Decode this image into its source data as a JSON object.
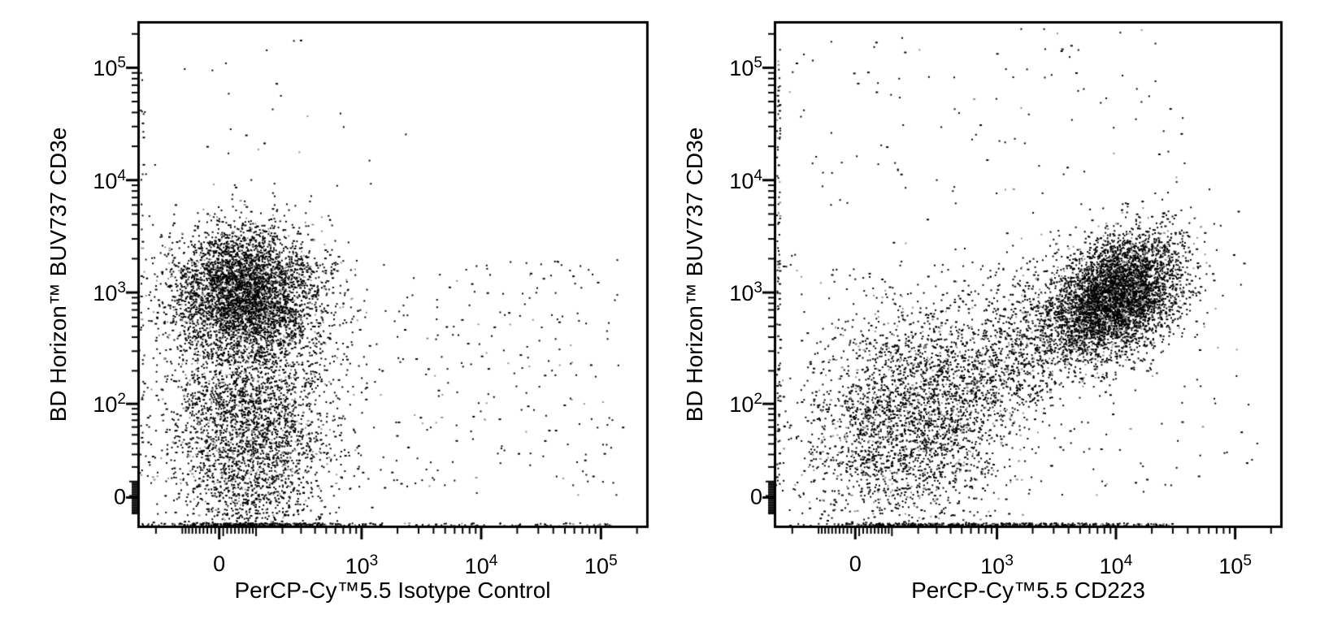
{
  "figure": {
    "background_color": "#ffffff",
    "axis_color": "#000000",
    "dot_color": "#000000",
    "dot_color_secondary": "#8f8f8f"
  },
  "chart_data": [
    {
      "type": "scatter",
      "variant": "flow-cytometry-dot-plot",
      "title": "",
      "x_axis": {
        "label": "PerCP-Cy™5.5 Isotype Control",
        "scale": "arcsinh",
        "cofactor": 130,
        "min": -300,
        "max": 250000,
        "ticks": [
          {
            "base": "0",
            "exp": "",
            "value": 0
          },
          {
            "base": "10",
            "exp": "3",
            "value": 1000
          },
          {
            "base": "10",
            "exp": "4",
            "value": 10000
          },
          {
            "base": "10",
            "exp": "5",
            "value": 100000
          }
        ]
      },
      "y_axis": {
        "label": "BD Horizon™ BUV737 CD3e",
        "scale": "arcsinh",
        "cofactor": 30,
        "min": -20,
        "max": 260000,
        "ticks": [
          {
            "base": "0",
            "exp": "",
            "value": 0
          },
          {
            "base": "10",
            "exp": "2",
            "value": 100
          },
          {
            "base": "10",
            "exp": "3",
            "value": 1000
          },
          {
            "base": "10",
            "exp": "4",
            "value": 10000
          },
          {
            "base": "10",
            "exp": "5",
            "value": 100000
          }
        ]
      },
      "populations": [
        {
          "name": "cd3e-positive-main",
          "n": 4300,
          "x": {
            "type": "gauss",
            "center": 65,
            "sigma_u": 0.72
          },
          "y": {
            "type": "gauss",
            "center": 1000,
            "sigma_u": 0.66
          },
          "rho": 0
        },
        {
          "name": "cd3e-low-tail",
          "n": 3100,
          "x": {
            "type": "gauss",
            "center": 75,
            "sigma_u": 0.8
          },
          "y": {
            "type": "gauss",
            "center": 55,
            "sigma_u": 1.2
          },
          "rho": 0
        },
        {
          "name": "sparse-right",
          "n": 300,
          "x": {
            "type": "uniform",
            "lo": 250,
            "hi": 150000
          },
          "y": {
            "type": "uniform",
            "lo": 2,
            "hi": 2000
          },
          "rho": 0
        },
        {
          "name": "sparse-top",
          "n": 35,
          "x": {
            "type": "gauss",
            "center": 150,
            "sigma_u": 1.3
          },
          "y": {
            "type": "uniform",
            "lo": 5000,
            "hi": 230000
          },
          "rho": 0
        },
        {
          "name": "axis-pile-bottom",
          "n": 340,
          "pile": "bottom",
          "x": {
            "type": "gauss",
            "center": 90,
            "sigma_u": 0.9
          }
        },
        {
          "name": "axis-pile-bottom-far",
          "n": 70,
          "pile": "bottom",
          "x": {
            "type": "uniform",
            "lo": 700,
            "hi": 120000
          }
        },
        {
          "name": "axis-pile-left",
          "n": 30,
          "pile": "left",
          "y": {
            "type": "uniform",
            "lo": 5,
            "hi": 100000
          }
        }
      ]
    },
    {
      "type": "scatter",
      "variant": "flow-cytometry-dot-plot",
      "title": "",
      "x_axis": {
        "label": "PerCP-Cy™5.5 CD223",
        "scale": "arcsinh",
        "cofactor": 130,
        "min": -300,
        "max": 250000,
        "ticks": [
          {
            "base": "0",
            "exp": "",
            "value": 0
          },
          {
            "base": "10",
            "exp": "3",
            "value": 1000
          },
          {
            "base": "10",
            "exp": "4",
            "value": 10000
          },
          {
            "base": "10",
            "exp": "5",
            "value": 100000
          }
        ]
      },
      "y_axis": {
        "label": "BD Horizon™ BUV737 CD3e",
        "scale": "arcsinh",
        "cofactor": 30,
        "min": -20,
        "max": 260000,
        "ticks": [
          {
            "base": "0",
            "exp": "",
            "value": 0
          },
          {
            "base": "10",
            "exp": "2",
            "value": 100
          },
          {
            "base": "10",
            "exp": "3",
            "value": 1000
          },
          {
            "base": "10",
            "exp": "4",
            "value": 10000
          },
          {
            "base": "10",
            "exp": "5",
            "value": 100000
          }
        ]
      },
      "populations": [
        {
          "name": "cd223-cd3e-double-positive",
          "n": 4700,
          "x": {
            "type": "gauss",
            "center": 10000,
            "sigma_u": 0.6
          },
          "y": {
            "type": "gauss",
            "center": 950,
            "sigma_u": 0.62
          },
          "rho": 0.35
        },
        {
          "name": "cd223-low-cloud",
          "n": 2900,
          "x": {
            "type": "gauss",
            "center": 170,
            "sigma_u": 1.05
          },
          "y": {
            "type": "gauss",
            "center": 75,
            "sigma_u": 1.2
          },
          "rho": 0.2
        },
        {
          "name": "diagonal-bridge",
          "n": 1000,
          "x": {
            "type": "gauss",
            "center": 1800,
            "sigma_u": 0.85
          },
          "y": {
            "type": "gauss",
            "center": 330,
            "sigma_u": 0.9
          },
          "rho": 0.45
        },
        {
          "name": "sparse-top",
          "n": 110,
          "x": {
            "type": "uniform",
            "lo": -250,
            "hi": 40000
          },
          "y": {
            "type": "uniform",
            "lo": 6000,
            "hi": 240000
          },
          "rho": 0
        },
        {
          "name": "sparse-wide",
          "n": 200,
          "x": {
            "type": "uniform",
            "lo": -250,
            "hi": 160000
          },
          "y": {
            "type": "uniform",
            "lo": 1,
            "hi": 2500
          },
          "rho": 0
        },
        {
          "name": "axis-pile-bottom",
          "n": 300,
          "pile": "bottom",
          "x": {
            "type": "gauss",
            "center": 400,
            "sigma_u": 1.3
          }
        },
        {
          "name": "axis-pile-bottom-far",
          "n": 130,
          "pile": "bottom",
          "x": {
            "type": "uniform",
            "lo": 1500,
            "hi": 30000
          }
        },
        {
          "name": "axis-pile-left",
          "n": 110,
          "pile": "left",
          "y": {
            "type": "uniform",
            "lo": 1,
            "hi": 150000
          }
        }
      ]
    }
  ]
}
